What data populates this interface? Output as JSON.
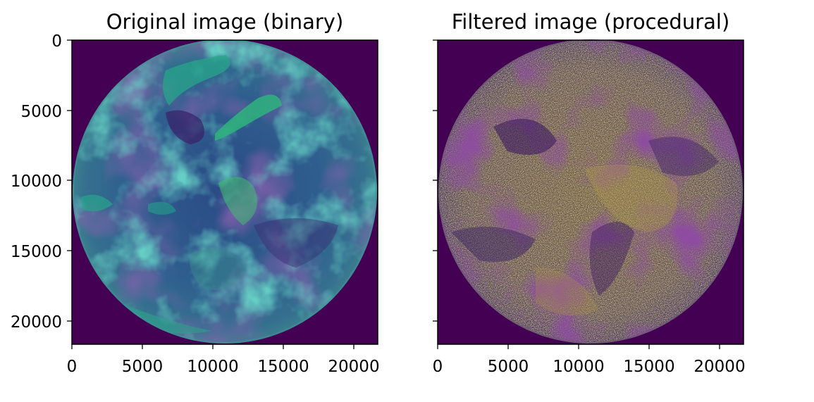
{
  "chart_data": [
    {
      "type": "heatmap",
      "title": "Original image (binary)",
      "colormap": "viridis",
      "image_content": "full-disk satellite image of Earth",
      "xlim": [
        0,
        21696
      ],
      "ylim": [
        0,
        21696
      ],
      "y_inverted": true,
      "xticks": [
        0,
        5000,
        10000,
        15000,
        20000
      ],
      "yticks": [
        0,
        5000,
        10000,
        15000,
        20000
      ],
      "xtick_labels": [
        "0",
        "5000",
        "10000",
        "15000",
        "20000"
      ],
      "ytick_labels": [
        "0",
        "5000",
        "10000",
        "15000",
        "20000"
      ],
      "show_ytick_labels": true,
      "grid": false,
      "colors": {
        "background": "#440154",
        "low": "#3b528b",
        "mid": "#21918c",
        "high": "#5ec962"
      }
    },
    {
      "type": "heatmap",
      "title": "Filtered image (procedural)",
      "colormap": "viridis",
      "image_content": "filtered full-disk satellite image of Earth",
      "xlim": [
        0,
        21696
      ],
      "ylim": [
        0,
        21696
      ],
      "y_inverted": true,
      "xticks": [
        0,
        5000,
        10000,
        15000,
        20000
      ],
      "yticks": [
        0,
        5000,
        10000,
        15000,
        20000
      ],
      "xtick_labels": [
        "0",
        "5000",
        "10000",
        "15000",
        "20000"
      ],
      "ytick_labels": [],
      "show_ytick_labels": false,
      "grid": false,
      "colors": {
        "background": "#440154",
        "low": "#46327e",
        "mid": "#8a7a3a",
        "high": "#c9a94a"
      }
    }
  ]
}
